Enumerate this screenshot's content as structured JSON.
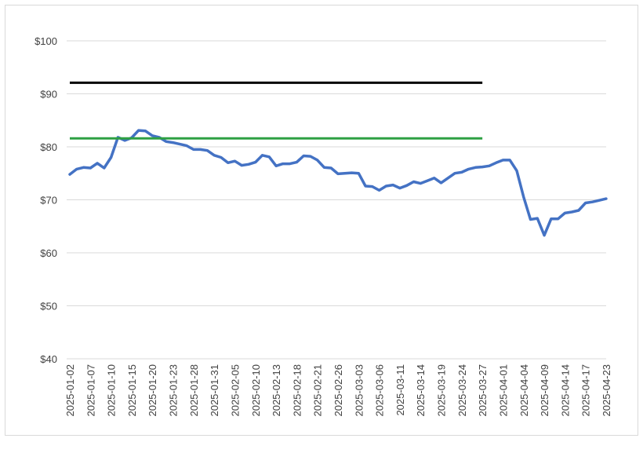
{
  "chart_data": {
    "type": "line",
    "title": "",
    "xlabel": "",
    "ylabel": "",
    "ylim": [
      40,
      100
    ],
    "y_ticks": [
      40,
      50,
      60,
      70,
      80,
      90,
      100
    ],
    "y_tick_labels": [
      "$40",
      "$50",
      "$60",
      "$70",
      "$80",
      "$90",
      "$100"
    ],
    "grid": "horizontal",
    "legend": "none",
    "x_tick_labels": [
      "2025-01-02",
      "2025-01-07",
      "2025-01-10",
      "2025-01-15",
      "2025-01-20",
      "2025-01-23",
      "2025-01-28",
      "2025-01-31",
      "2025-02-05",
      "2025-02-10",
      "2025-02-13",
      "2025-02-18",
      "2025-02-21",
      "2025-02-26",
      "2025-03-03",
      "2025-03-06",
      "2025-03-11",
      "2025-03-14",
      "2025-03-19",
      "2025-03-24",
      "2025-03-27",
      "2025-04-01",
      "2025-04-04",
      "2025-04-09",
      "2025-04-14",
      "2025-04-17",
      "2025-04-23"
    ],
    "x": [
      "2025-01-02",
      "2025-01-03",
      "2025-01-06",
      "2025-01-07",
      "2025-01-08",
      "2025-01-09",
      "2025-01-10",
      "2025-01-13",
      "2025-01-14",
      "2025-01-15",
      "2025-01-16",
      "2025-01-17",
      "2025-01-20",
      "2025-01-21",
      "2025-01-22",
      "2025-01-23",
      "2025-01-24",
      "2025-01-27",
      "2025-01-28",
      "2025-01-29",
      "2025-01-30",
      "2025-01-31",
      "2025-02-03",
      "2025-02-04",
      "2025-02-05",
      "2025-02-06",
      "2025-02-07",
      "2025-02-10",
      "2025-02-11",
      "2025-02-12",
      "2025-02-13",
      "2025-02-14",
      "2025-02-17",
      "2025-02-18",
      "2025-02-19",
      "2025-02-20",
      "2025-02-21",
      "2025-02-24",
      "2025-02-25",
      "2025-02-26",
      "2025-02-27",
      "2025-02-28",
      "2025-03-03",
      "2025-03-04",
      "2025-03-05",
      "2025-03-06",
      "2025-03-07",
      "2025-03-10",
      "2025-03-11",
      "2025-03-12",
      "2025-03-13",
      "2025-03-14",
      "2025-03-17",
      "2025-03-18",
      "2025-03-19",
      "2025-03-20",
      "2025-03-21",
      "2025-03-24",
      "2025-03-25",
      "2025-03-26",
      "2025-03-27",
      "2025-03-28",
      "2025-03-31",
      "2025-04-01",
      "2025-04-02",
      "2025-04-03",
      "2025-04-04",
      "2025-04-07",
      "2025-04-08",
      "2025-04-09",
      "2025-04-10",
      "2025-04-11",
      "2025-04-14",
      "2025-04-15",
      "2025-04-16",
      "2025-04-17",
      "2025-04-21",
      "2025-04-22",
      "2025-04-23"
    ],
    "series": [
      {
        "color": "#4472c4",
        "values": [
          74.8,
          75.8,
          76.1,
          76.0,
          76.9,
          76.0,
          78.0,
          81.8,
          81.2,
          81.7,
          83.1,
          83.0,
          82.1,
          81.8,
          81.0,
          80.8,
          80.5,
          80.2,
          79.5,
          79.5,
          79.3,
          78.4,
          78.0,
          77.0,
          77.3,
          76.5,
          76.7,
          77.1,
          78.4,
          78.1,
          76.4,
          76.8,
          76.8,
          77.1,
          78.3,
          78.2,
          77.5,
          76.1,
          76.0,
          74.9,
          75.0,
          75.1,
          75.0,
          72.6,
          72.5,
          71.8,
          72.6,
          72.8,
          72.2,
          72.7,
          73.4,
          73.1,
          73.6,
          74.1,
          73.2,
          74.1,
          75.0,
          75.2,
          75.8,
          76.1,
          76.2,
          76.4,
          77.0,
          77.5,
          77.5,
          75.5,
          70.5,
          66.3,
          66.5,
          63.3,
          66.4,
          66.4,
          67.5,
          67.7,
          68.0,
          69.4,
          69.6,
          69.9,
          70.2
        ]
      },
      {
        "color": "#000000",
        "from": "2025-01-02",
        "to": "2025-03-27",
        "value": 92.1
      },
      {
        "color": "#2ea043",
        "from": "2025-01-02",
        "to": "2025-03-27",
        "value": 81.6
      }
    ]
  }
}
